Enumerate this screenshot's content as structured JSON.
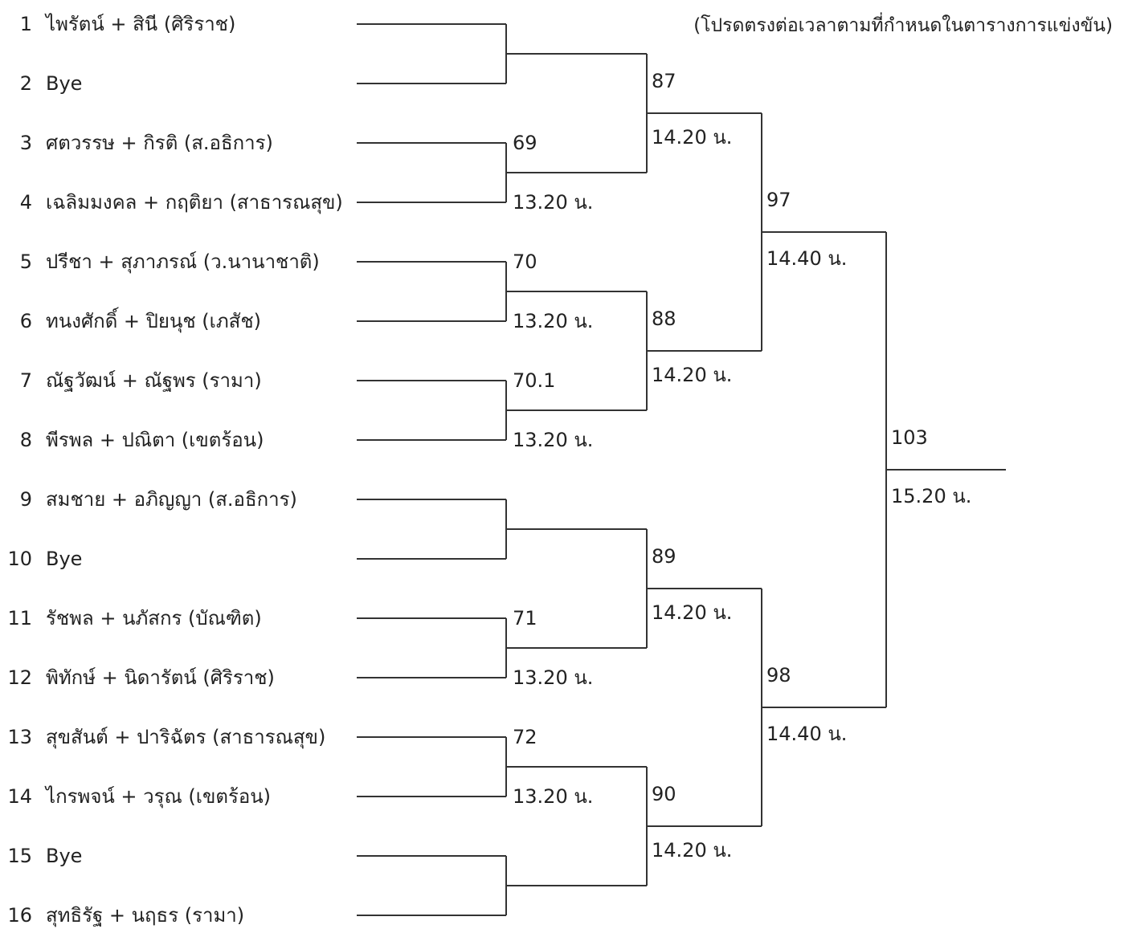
{
  "note": "(โปรดตรงต่อเวลาตามที่กำหนดในตารางการแข่งขัน)",
  "entries": [
    {
      "seed": "1",
      "name": "ไพรัตน์ + สินี (ศิริราช)"
    },
    {
      "seed": "2",
      "name": "Bye"
    },
    {
      "seed": "3",
      "name": "ศตวรรษ + กิรติ (ส.อธิการ)"
    },
    {
      "seed": "4",
      "name": "เฉลิมมงคล + กฤติยา (สาธารณสุข)"
    },
    {
      "seed": "5",
      "name": "ปรีชา + สุภาภรณ์ (ว.นานาชาติ)"
    },
    {
      "seed": "6",
      "name": "ทนงศักดิ์ + ปิยนุช (เภสัช)"
    },
    {
      "seed": "7",
      "name": "ณัฐวัฒน์ + ณัฐพร (รามา)"
    },
    {
      "seed": "8",
      "name": "พีรพล + ปณิตา (เขตร้อน)"
    },
    {
      "seed": "9",
      "name": "สมชาย + อภิญญา (ส.อธิการ)"
    },
    {
      "seed": "10",
      "name": "Bye"
    },
    {
      "seed": "11",
      "name": "รัชพล + นภัสกร (บัณฑิต)"
    },
    {
      "seed": "12",
      "name": "พิทักษ์ + นิดารัตน์ (ศิริราช)"
    },
    {
      "seed": "13",
      "name": "สุขสันต์ + ปาริฉัตร (สาธารณสุข)"
    },
    {
      "seed": "14",
      "name": "ไกรพจน์ + วรุณ (เขตร้อน)"
    },
    {
      "seed": "15",
      "name": "Bye"
    },
    {
      "seed": "16",
      "name": "สุทธิรัฐ + นฤธร (รามา)"
    }
  ],
  "round1": [
    {
      "pair": 0,
      "number": "",
      "time": ""
    },
    {
      "pair": 1,
      "number": "69",
      "time": "13.20 น."
    },
    {
      "pair": 2,
      "number": "70",
      "time": "13.20 น."
    },
    {
      "pair": 3,
      "number": "70.1",
      "time": "13.20 น."
    },
    {
      "pair": 4,
      "number": "",
      "time": ""
    },
    {
      "pair": 5,
      "number": "71",
      "time": "13.20 น."
    },
    {
      "pair": 6,
      "number": "72",
      "time": "13.20 น."
    },
    {
      "pair": 7,
      "number": "",
      "time": ""
    }
  ],
  "round2": [
    {
      "pair": 0,
      "number": "87",
      "time": "14.20 น."
    },
    {
      "pair": 1,
      "number": "88",
      "time": "14.20 น."
    },
    {
      "pair": 2,
      "number": "89",
      "time": "14.20 น."
    },
    {
      "pair": 3,
      "number": "90",
      "time": "14.20 น."
    }
  ],
  "round3": [
    {
      "pair": 0,
      "number": "97",
      "time": "14.40 น."
    },
    {
      "pair": 1,
      "number": "98",
      "time": "14.40 น."
    }
  ],
  "final": {
    "number": "103",
    "time": "15.20 น."
  }
}
